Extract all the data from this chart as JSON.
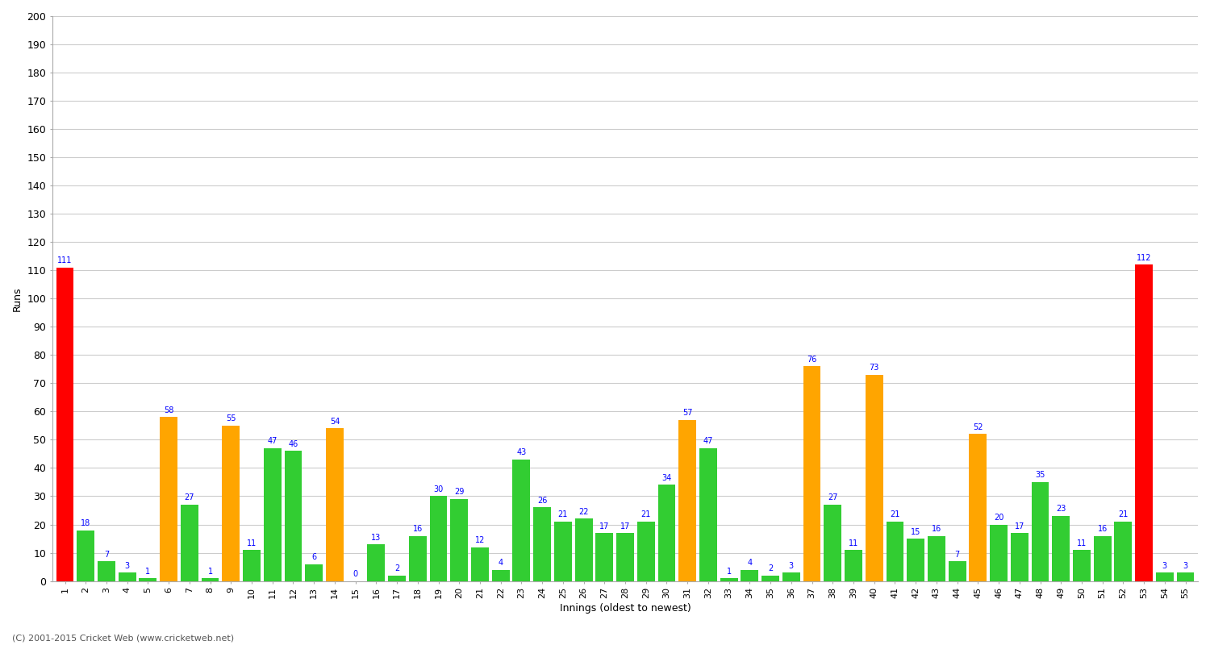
{
  "title": "",
  "xlabel": "Innings (oldest to newest)",
  "ylabel": "Runs",
  "innings": [
    1,
    2,
    3,
    4,
    5,
    6,
    7,
    8,
    9,
    10,
    11,
    12,
    13,
    14,
    15,
    16,
    17,
    18,
    19,
    20,
    21,
    22,
    23,
    24,
    25,
    26,
    27,
    28,
    29,
    30,
    31,
    32,
    33,
    34,
    35,
    36,
    37,
    38,
    39,
    40,
    41,
    42,
    43,
    44,
    45,
    46,
    47,
    48,
    49,
    50,
    51,
    52,
    53,
    54,
    55
  ],
  "values": [
    111,
    18,
    7,
    3,
    1,
    58,
    27,
    1,
    55,
    11,
    47,
    46,
    6,
    54,
    0,
    13,
    2,
    16,
    30,
    29,
    12,
    4,
    43,
    26,
    21,
    22,
    17,
    17,
    21,
    34,
    57,
    47,
    1,
    4,
    2,
    3,
    76,
    27,
    11,
    73,
    21,
    15,
    16,
    7,
    52,
    20,
    17,
    35,
    23,
    11,
    16,
    21,
    112,
    3,
    3
  ],
  "colors": [
    "red",
    "limegreen",
    "limegreen",
    "limegreen",
    "limegreen",
    "orange",
    "limegreen",
    "limegreen",
    "orange",
    "limegreen",
    "limegreen",
    "limegreen",
    "limegreen",
    "orange",
    "limegreen",
    "limegreen",
    "limegreen",
    "limegreen",
    "limegreen",
    "limegreen",
    "limegreen",
    "limegreen",
    "limegreen",
    "limegreen",
    "limegreen",
    "limegreen",
    "limegreen",
    "limegreen",
    "limegreen",
    "limegreen",
    "orange",
    "limegreen",
    "limegreen",
    "limegreen",
    "limegreen",
    "limegreen",
    "orange",
    "limegreen",
    "limegreen",
    "orange",
    "limegreen",
    "limegreen",
    "limegreen",
    "limegreen",
    "orange",
    "limegreen",
    "limegreen",
    "limegreen",
    "limegreen",
    "limegreen",
    "limegreen",
    "limegreen",
    "red",
    "limegreen",
    "limegreen"
  ],
  "ylim": [
    0,
    200
  ],
  "yticks": [
    0,
    10,
    20,
    30,
    40,
    50,
    60,
    70,
    80,
    90,
    100,
    110,
    120,
    130,
    140,
    150,
    160,
    170,
    180,
    190,
    200
  ],
  "bg_color": "#ffffff",
  "grid_color": "#cccccc",
  "label_color": "blue",
  "bar_width": 0.85,
  "footnote": "(C) 2001-2015 Cricket Web (www.cricketweb.net)"
}
